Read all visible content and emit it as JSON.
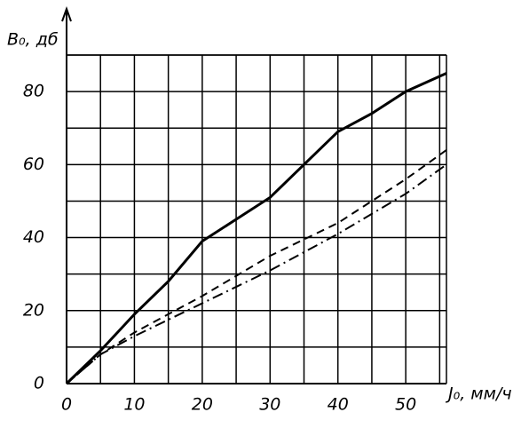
{
  "chart_data": {
    "type": "line",
    "ylabel": "B₀, дб",
    "xlabel": "J₀, мм/ч",
    "xlim": [
      0,
      56
    ],
    "ylim": [
      0,
      90
    ],
    "xticks": [
      0,
      10,
      20,
      30,
      40,
      50
    ],
    "xminor": [
      5,
      15,
      25,
      35,
      45,
      55
    ],
    "yticks": [
      0,
      20,
      40,
      60,
      80
    ],
    "yminor": [
      10,
      30,
      50,
      70,
      90
    ],
    "grid": true,
    "series": [
      {
        "style": "solid",
        "color": "#000000",
        "x": [
          0,
          5,
          10,
          15,
          20,
          25,
          30,
          35,
          40,
          45,
          50,
          56
        ],
        "values": [
          0,
          9,
          19,
          28,
          39,
          45,
          51,
          60,
          69,
          74,
          80,
          85
        ]
      },
      {
        "style": "dashed",
        "color": "#000000",
        "x": [
          0,
          5,
          10,
          20,
          30,
          40,
          50,
          56
        ],
        "values": [
          0,
          8,
          14,
          24,
          35,
          44,
          56,
          64
        ]
      },
      {
        "style": "dashdot",
        "color": "#000000",
        "x": [
          0,
          5,
          10,
          20,
          30,
          40,
          50,
          56
        ],
        "values": [
          0,
          8,
          13,
          22,
          31,
          41,
          52,
          60
        ]
      }
    ]
  }
}
